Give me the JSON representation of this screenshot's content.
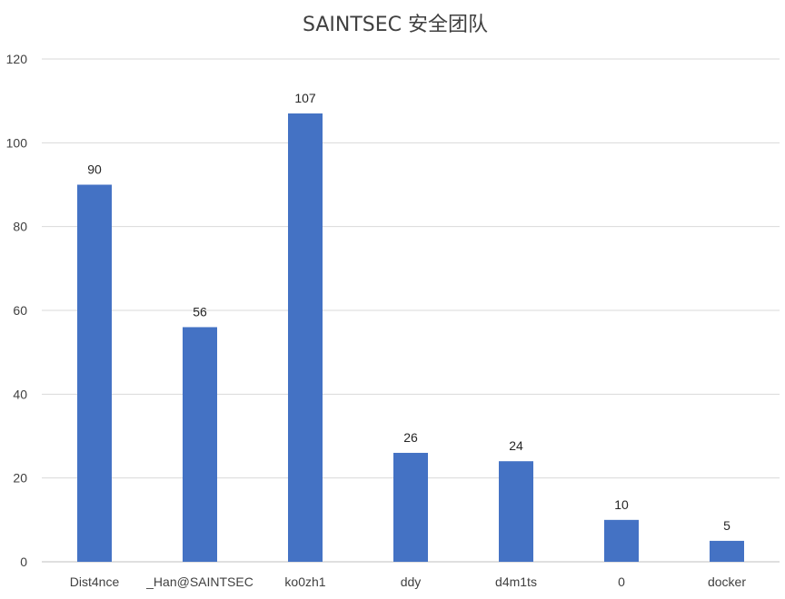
{
  "chart_data": {
    "type": "bar",
    "title": "SAINTSEC 安全团队",
    "xlabel": "",
    "ylabel": "",
    "categories": [
      "Dist4nce",
      "_Han@SAINTSEC",
      "ko0zh1",
      "ddy",
      "d4m1ts",
      "0",
      "docker"
    ],
    "values": [
      90,
      56,
      107,
      26,
      24,
      10,
      5
    ],
    "data_labels": [
      "90",
      "56",
      "107",
      "26",
      "24",
      "10",
      "5"
    ],
    "ylim": [
      0,
      120
    ],
    "yticks": [
      0,
      20,
      40,
      60,
      80,
      100,
      120
    ],
    "grid": true,
    "legend": "none",
    "bar_color": "#4472C4"
  }
}
